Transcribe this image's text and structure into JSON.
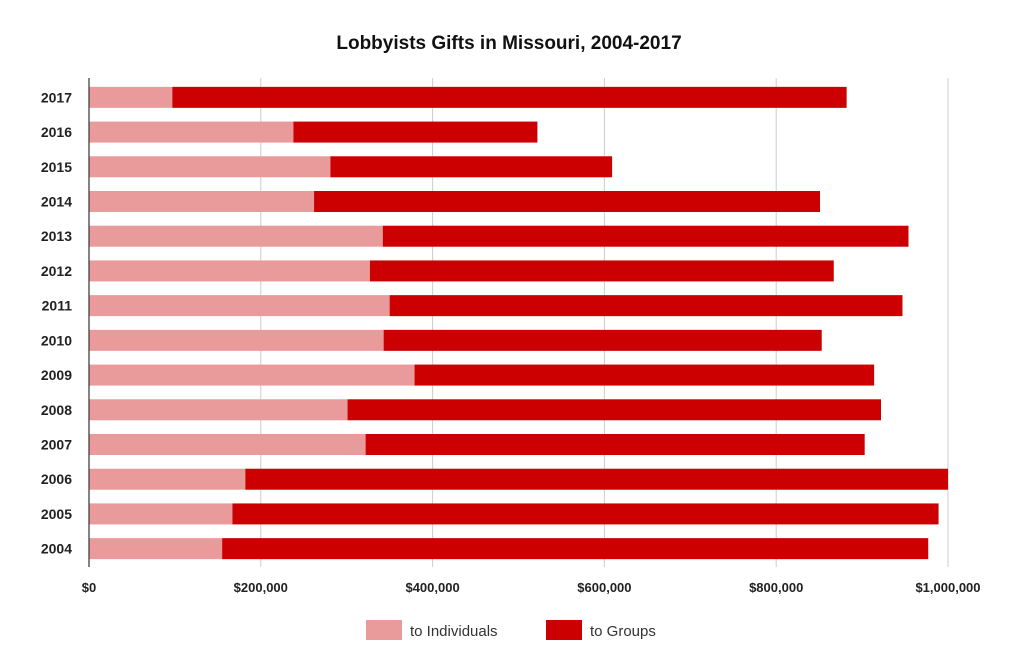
{
  "chart_data": {
    "type": "bar",
    "orientation": "horizontal",
    "stacked": true,
    "title": "Lobbyists Gifts in Missouri, 2004-2017",
    "xlabel": "",
    "ylabel": "",
    "xlim": [
      0,
      1000000
    ],
    "x_ticks": [
      0,
      200000,
      400000,
      600000,
      800000,
      1000000
    ],
    "x_tick_labels": [
      "$0",
      "$200,000",
      "$400,000",
      "$600,000",
      "$800,000",
      "$1,000,000"
    ],
    "categories": [
      "2017",
      "2016",
      "2015",
      "2014",
      "2013",
      "2012",
      "2011",
      "2010",
      "2009",
      "2008",
      "2007",
      "2006",
      "2005",
      "2004"
    ],
    "series": [
      {
        "name": "to Individuals",
        "color": "#e99a9a",
        "values": [
          97000,
          238000,
          281000,
          262000,
          342000,
          327000,
          350000,
          343000,
          379000,
          301000,
          322000,
          182000,
          167000,
          155000
        ]
      },
      {
        "name": "to Groups",
        "color": "#cc0000",
        "values": [
          785000,
          284000,
          328000,
          589000,
          612000,
          540000,
          597000,
          510000,
          535000,
          621000,
          581000,
          818000,
          822000,
          822000
        ]
      }
    ],
    "grid": true,
    "legend_position": "bottom"
  }
}
